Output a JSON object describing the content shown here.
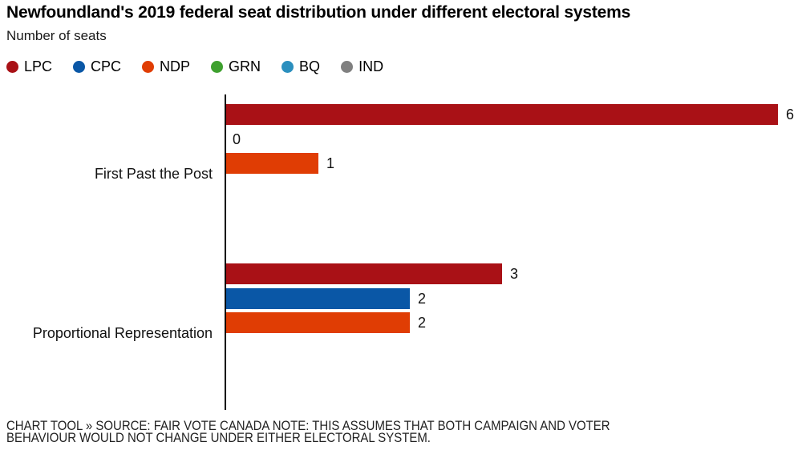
{
  "title": "Newfoundland's 2019 federal seat distribution under different electoral systems",
  "subtitle": "Number of seats",
  "legend": {
    "items": [
      {
        "label": "LPC",
        "color": "#A91116"
      },
      {
        "label": "CPC",
        "color": "#0A57A6"
      },
      {
        "label": "NDP",
        "color": "#E03D04"
      },
      {
        "label": "GRN",
        "color": "#3EA02E"
      },
      {
        "label": "BQ",
        "color": "#2B8FBE"
      },
      {
        "label": "IND",
        "color": "#808080"
      }
    ]
  },
  "chart_data": {
    "type": "bar",
    "orientation": "horizontal",
    "title": "Newfoundland's 2019 federal seat distribution under different electoral systems",
    "subtitle": "Number of seats",
    "categories": [
      "First Past the Post",
      "Proportional Representation"
    ],
    "series": [
      {
        "name": "LPC",
        "color": "#A91116",
        "values": [
          6,
          3
        ]
      },
      {
        "name": "CPC",
        "color": "#0A57A6",
        "values": [
          0,
          2
        ]
      },
      {
        "name": "NDP",
        "color": "#E03D04",
        "values": [
          1,
          2
        ]
      }
    ],
    "legend_only_series": [
      {
        "name": "GRN",
        "color": "#3EA02E"
      },
      {
        "name": "BQ",
        "color": "#2B8FBE"
      },
      {
        "name": "IND",
        "color": "#808080"
      }
    ],
    "xlim": [
      0,
      6
    ],
    "value_labels": true,
    "grid": false,
    "legend_position": "top",
    "axis_color": "#000000"
  },
  "footer": {
    "line1": "CHART TOOL » SOURCE: FAIR VOTE CANADA NOTE: THIS ASSUMES THAT BOTH CAMPAIGN AND VOTER",
    "line2": "BEHAVIOUR WOULD NOT CHANGE UNDER EITHER ELECTORAL SYSTEM."
  }
}
